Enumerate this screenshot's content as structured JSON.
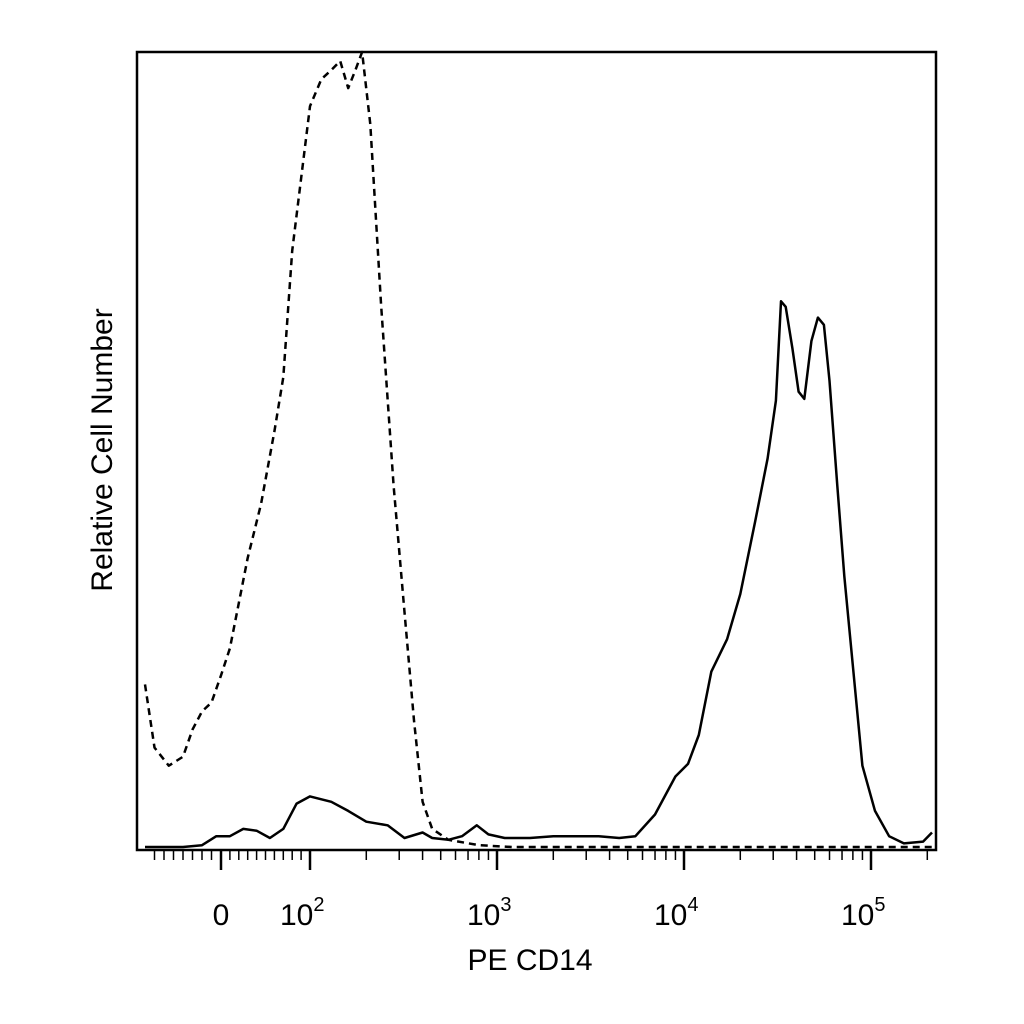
{
  "chart_data": {
    "type": "line",
    "title": "",
    "xlabel": "PE CD14",
    "ylabel": "Relative Cell Number",
    "x_scale": "biexponential",
    "x_tick_labels": [
      {
        "value": 0,
        "base": "0",
        "exp": ""
      },
      {
        "value": 100,
        "base": "10",
        "exp": "2"
      },
      {
        "value": 1000,
        "base": "10",
        "exp": "3"
      },
      {
        "value": 10000,
        "base": "10",
        "exp": "4"
      },
      {
        "value": 100000,
        "base": "10",
        "exp": "5"
      }
    ],
    "y_ticks_shown": false,
    "grid": false,
    "legend": "none",
    "series": [
      {
        "style": "solid",
        "color": "#000000",
        "points": [
          [
            -80,
            0
          ],
          [
            -40,
            0
          ],
          [
            -20,
            1
          ],
          [
            -5,
            6
          ],
          [
            0,
            6
          ],
          [
            10,
            6
          ],
          [
            25,
            10
          ],
          [
            40,
            9
          ],
          [
            55,
            5
          ],
          [
            70,
            10
          ],
          [
            85,
            24
          ],
          [
            100,
            28
          ],
          [
            130,
            25
          ],
          [
            160,
            20
          ],
          [
            200,
            14
          ],
          [
            260,
            12
          ],
          [
            320,
            5
          ],
          [
            400,
            8
          ],
          [
            450,
            5
          ],
          [
            550,
            4
          ],
          [
            650,
            6
          ],
          [
            780,
            12
          ],
          [
            900,
            7
          ],
          [
            1100,
            5
          ],
          [
            1500,
            5
          ],
          [
            2000,
            6
          ],
          [
            2700,
            6
          ],
          [
            3500,
            6
          ],
          [
            4500,
            5
          ],
          [
            5500,
            6
          ],
          [
            7000,
            18
          ],
          [
            9000,
            39
          ],
          [
            10500,
            46
          ],
          [
            12000,
            62
          ],
          [
            14000,
            97
          ],
          [
            17000,
            115
          ],
          [
            20000,
            140
          ],
          [
            24000,
            180
          ],
          [
            28000,
            215
          ],
          [
            31000,
            247
          ],
          [
            33000,
            302
          ],
          [
            35000,
            299
          ],
          [
            38000,
            276
          ],
          [
            41000,
            252
          ],
          [
            44000,
            248
          ],
          [
            48000,
            280
          ],
          [
            52000,
            293
          ],
          [
            56000,
            289
          ],
          [
            60000,
            258
          ],
          [
            66000,
            200
          ],
          [
            72000,
            150
          ],
          [
            80000,
            100
          ],
          [
            90000,
            45
          ],
          [
            105000,
            20
          ],
          [
            125000,
            6
          ],
          [
            150000,
            2
          ],
          [
            190000,
            3
          ],
          [
            230000,
            8
          ]
        ]
      },
      {
        "style": "dashed",
        "color": "#000000",
        "points": [
          [
            -80,
            90
          ],
          [
            -70,
            55
          ],
          [
            -55,
            45
          ],
          [
            -40,
            50
          ],
          [
            -30,
            65
          ],
          [
            -20,
            75
          ],
          [
            -10,
            80
          ],
          [
            0,
            95
          ],
          [
            10,
            110
          ],
          [
            20,
            135
          ],
          [
            30,
            160
          ],
          [
            45,
            190
          ],
          [
            60,
            230
          ],
          [
            70,
            260
          ],
          [
            80,
            330
          ],
          [
            90,
            370
          ],
          [
            100,
            410
          ],
          [
            115,
            425
          ],
          [
            130,
            430
          ],
          [
            145,
            435
          ],
          [
            160,
            420
          ],
          [
            175,
            430
          ],
          [
            190,
            440
          ],
          [
            210,
            400
          ],
          [
            240,
            300
          ],
          [
            280,
            200
          ],
          [
            320,
            130
          ],
          [
            360,
            70
          ],
          [
            400,
            25
          ],
          [
            450,
            10
          ],
          [
            550,
            4
          ],
          [
            800,
            1
          ],
          [
            1200,
            0
          ],
          [
            230000,
            0
          ]
        ]
      }
    ]
  }
}
